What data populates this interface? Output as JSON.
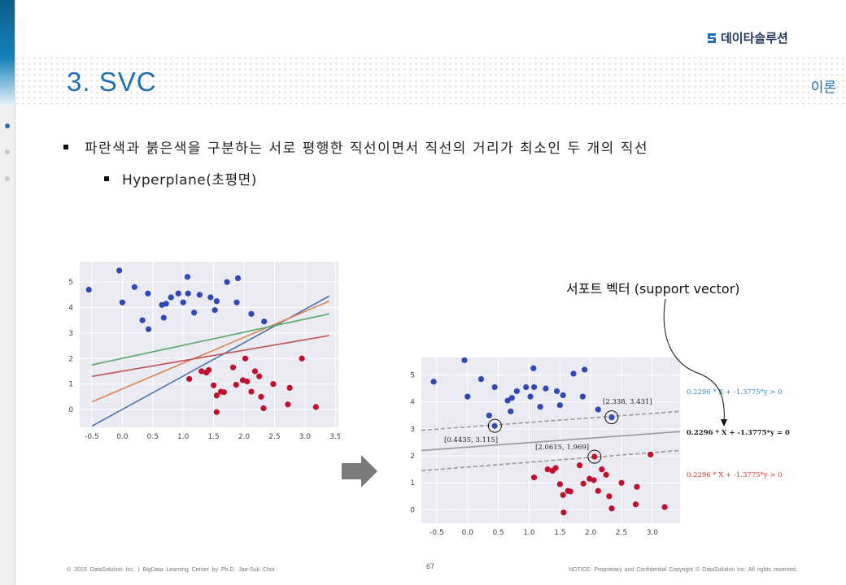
{
  "header": {
    "logo_text": "데이타솔루션",
    "title": "3. SVC",
    "section_tag": "이론"
  },
  "bullets": {
    "level1": "파란색과 붉은색을 구분하는 서로 평행한 직선이면서 직선의 거리가 최소인 두 개의 직선",
    "level2": "Hyperplane(초평면)"
  },
  "annotations": {
    "support_vector_label": "서포트 벡터 (support vector)",
    "sv1": "[0.4435, 3.115]",
    "sv2": "[2.0615, 1.969]",
    "sv3": "[2.338, 3.431]",
    "eq_upper": "0.2296 * X + -1.3775*y > 0",
    "eq_middle": "0.2296 * X + -1.3775*y = 0",
    "eq_lower": "0.2296 * X + -1.3775*y > 0"
  },
  "footer": {
    "left": "© 2019 DataSolution Inc. | BigData Learning Center by Ph.D. Jae-Suk Choi",
    "page": "67",
    "right": "NOTICE: Proprietary and Confidential Copyright © DataSolution Inc. All rights reserved."
  },
  "colors": {
    "accent": "#1f6fb5",
    "blue_points": "#2f47b8",
    "red_points": "#c0102e",
    "plot_bg": "#e9eaf2",
    "eq_blue": "#2e86c1",
    "eq_red": "#e0302a",
    "eq_black": "#222222"
  },
  "chart_data": [
    {
      "type": "scatter",
      "xlim": [
        -0.7,
        3.55
      ],
      "ylim": [
        -0.7,
        5.8
      ],
      "xticks": [
        -0.5,
        0.0,
        0.5,
        1.0,
        1.5,
        2.0,
        2.5,
        3.0,
        3.5
      ],
      "yticks": [
        0,
        1,
        2,
        3,
        4,
        5
      ],
      "grid": true,
      "series": [
        {
          "color": "#2f47b8",
          "points": [
            [
              -0.55,
              4.7
            ],
            [
              -0.05,
              5.45
            ],
            [
              0.0,
              4.2
            ],
            [
              0.2,
              4.8
            ],
            [
              0.33,
              3.5
            ],
            [
              0.42,
              4.55
            ],
            [
              0.43,
              3.15
            ],
            [
              0.65,
              4.1
            ],
            [
              0.68,
              3.6
            ],
            [
              0.72,
              4.15
            ],
            [
              0.8,
              4.4
            ],
            [
              0.92,
              4.55
            ],
            [
              1.0,
              4.2
            ],
            [
              1.07,
              5.2
            ],
            [
              1.08,
              4.55
            ],
            [
              1.18,
              3.8
            ],
            [
              1.27,
              4.5
            ],
            [
              1.45,
              4.4
            ],
            [
              1.52,
              3.9
            ],
            [
              1.55,
              4.25
            ],
            [
              1.72,
              5.0
            ],
            [
              1.88,
              4.2
            ],
            [
              1.9,
              5.15
            ],
            [
              2.12,
              3.75
            ],
            [
              2.33,
              3.45
            ]
          ]
        },
        {
          "color": "#c0102e",
          "points": [
            [
              1.1,
              1.2
            ],
            [
              1.3,
              1.5
            ],
            [
              1.38,
              1.45
            ],
            [
              1.42,
              1.55
            ],
            [
              1.5,
              0.95
            ],
            [
              1.55,
              0.55
            ],
            [
              1.55,
              -0.1
            ],
            [
              1.62,
              0.7
            ],
            [
              1.67,
              0.68
            ],
            [
              1.82,
              1.65
            ],
            [
              1.87,
              0.97
            ],
            [
              1.98,
              1.15
            ],
            [
              2.02,
              2.0
            ],
            [
              2.05,
              1.1
            ],
            [
              2.12,
              0.7
            ],
            [
              2.18,
              1.5
            ],
            [
              2.25,
              1.3
            ],
            [
              2.28,
              0.5
            ],
            [
              2.32,
              0.05
            ],
            [
              2.48,
              1.0
            ],
            [
              2.72,
              0.2
            ],
            [
              2.75,
              0.85
            ],
            [
              2.95,
              2.0
            ],
            [
              3.18,
              0.1
            ]
          ]
        }
      ],
      "lines": [
        {
          "color": "#4c72b0",
          "from": [
            -0.5,
            -0.65
          ],
          "to": [
            3.4,
            4.45
          ]
        },
        {
          "color": "#dd8452",
          "from": [
            -0.5,
            0.3
          ],
          "to": [
            3.4,
            4.25
          ]
        },
        {
          "color": "#55a868",
          "from": [
            -0.5,
            1.75
          ],
          "to": [
            3.4,
            3.75
          ]
        },
        {
          "color": "#c44e52",
          "from": [
            -0.5,
            1.3
          ],
          "to": [
            3.4,
            2.9
          ]
        }
      ]
    },
    {
      "type": "scatter",
      "xlim": [
        -0.75,
        3.45
      ],
      "ylim": [
        -0.5,
        5.65
      ],
      "xticks": [
        -0.5,
        0.0,
        0.5,
        1.0,
        1.5,
        2.0,
        2.5,
        3.0
      ],
      "yticks": [
        0,
        1,
        2,
        3,
        4,
        5
      ],
      "grid": true,
      "series": [
        {
          "color": "#2f47b8",
          "points": [
            [
              -0.55,
              4.75
            ],
            [
              -0.05,
              5.55
            ],
            [
              0.0,
              4.2
            ],
            [
              0.22,
              4.85
            ],
            [
              0.35,
              3.5
            ],
            [
              0.44,
              4.55
            ],
            [
              0.44,
              3.11
            ],
            [
              0.65,
              4.05
            ],
            [
              0.7,
              3.65
            ],
            [
              0.72,
              4.15
            ],
            [
              0.8,
              4.4
            ],
            [
              0.95,
              4.55
            ],
            [
              1.02,
              4.2
            ],
            [
              1.07,
              5.25
            ],
            [
              1.08,
              4.55
            ],
            [
              1.18,
              3.82
            ],
            [
              1.27,
              4.5
            ],
            [
              1.45,
              4.4
            ],
            [
              1.5,
              3.88
            ],
            [
              1.55,
              4.25
            ],
            [
              1.72,
              5.05
            ],
            [
              1.87,
              4.2
            ],
            [
              1.9,
              5.2
            ],
            [
              2.12,
              3.72
            ],
            [
              2.34,
              3.43
            ]
          ]
        },
        {
          "color": "#c0102e",
          "points": [
            [
              1.08,
              1.2
            ],
            [
              1.3,
              1.5
            ],
            [
              1.38,
              1.45
            ],
            [
              1.43,
              1.55
            ],
            [
              1.5,
              0.95
            ],
            [
              1.55,
              0.55
            ],
            [
              1.56,
              -0.1
            ],
            [
              1.63,
              0.7
            ],
            [
              1.67,
              0.68
            ],
            [
              1.82,
              1.65
            ],
            [
              1.88,
              0.97
            ],
            [
              1.98,
              1.15
            ],
            [
              2.06,
              1.97
            ],
            [
              2.05,
              1.1
            ],
            [
              2.12,
              0.7
            ],
            [
              2.18,
              1.5
            ],
            [
              2.25,
              1.3
            ],
            [
              2.3,
              0.5
            ],
            [
              2.34,
              0.05
            ],
            [
              2.5,
              1.0
            ],
            [
              2.73,
              0.2
            ],
            [
              2.75,
              0.85
            ],
            [
              2.97,
              2.05
            ],
            [
              3.2,
              0.1
            ]
          ]
        }
      ],
      "lines": [
        {
          "color": "#999999",
          "style": "solid",
          "from": [
            -0.75,
            2.2
          ],
          "to": [
            3.45,
            2.9
          ]
        },
        {
          "color": "#999999",
          "style": "dashed",
          "from": [
            -0.75,
            2.95
          ],
          "to": [
            3.45,
            3.65
          ]
        },
        {
          "color": "#999999",
          "style": "dashed",
          "from": [
            -0.75,
            1.45
          ],
          "to": [
            3.45,
            2.2
          ]
        }
      ],
      "support_vectors": [
        [
          0.4435,
          3.115
        ],
        [
          2.0615,
          1.969
        ],
        [
          2.338,
          3.431
        ]
      ]
    }
  ]
}
